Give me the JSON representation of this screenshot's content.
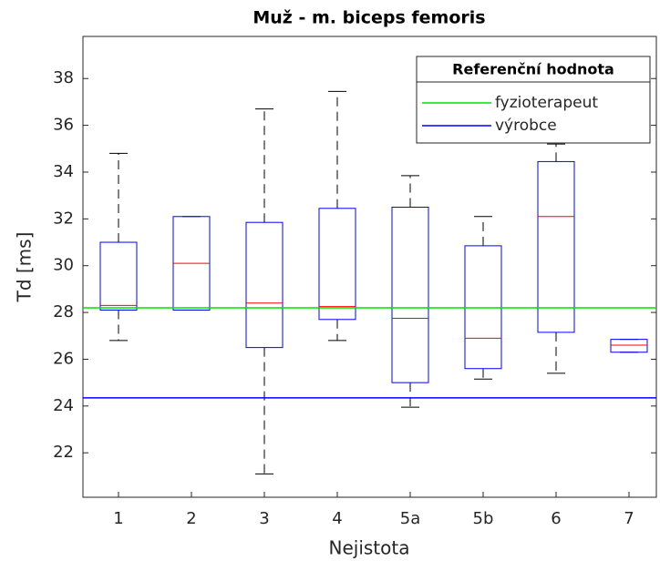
{
  "chart_data": {
    "type": "box",
    "title": "Muž - m. biceps femoris",
    "xlabel": "Nejistota",
    "ylabel": "Td [ms]",
    "categories": [
      "1",
      "2",
      "3",
      "4",
      "5a",
      "5b",
      "6",
      "7"
    ],
    "boxes": [
      {
        "min": 26.8,
        "q1": 28.1,
        "median": 28.3,
        "q3": 31.0,
        "max": 34.8
      },
      {
        "min": 28.1,
        "q1": 28.1,
        "median": 30.1,
        "q3": 32.1,
        "max": 32.1
      },
      {
        "min": 21.1,
        "q1": 26.5,
        "median": 28.4,
        "q3": 31.85,
        "max": 36.7
      },
      {
        "min": 26.8,
        "q1": 27.7,
        "median": 28.25,
        "q3": 32.45,
        "max": 37.45
      },
      {
        "min": 23.95,
        "q1": 25.0,
        "median": 27.75,
        "q3": 32.5,
        "max": 33.85
      },
      {
        "min": 25.15,
        "q1": 25.6,
        "median": 26.9,
        "q3": 30.85,
        "max": 32.1
      },
      {
        "min": 25.4,
        "q1": 27.15,
        "median": 32.1,
        "q3": 34.45,
        "max": 35.2
      },
      {
        "min": 26.3,
        "q1": 26.3,
        "median": 26.6,
        "q3": 26.85,
        "max": 26.85
      }
    ],
    "box_color": "#0000ff",
    "median_color": "#ff0000",
    "whisker_color": "#000000",
    "legend_title": "Referenční hodnota",
    "legend": "northeast",
    "reference_lines": [
      {
        "name": "fyzioterapeut",
        "color": "#00e000",
        "value": 28.2
      },
      {
        "name": "výrobce",
        "color": "#0000ff",
        "value": 24.35
      }
    ],
    "ylim": [
      20.1,
      39.8
    ],
    "yticks": [
      22,
      24,
      26,
      28,
      30,
      32,
      34,
      36,
      38
    ]
  }
}
